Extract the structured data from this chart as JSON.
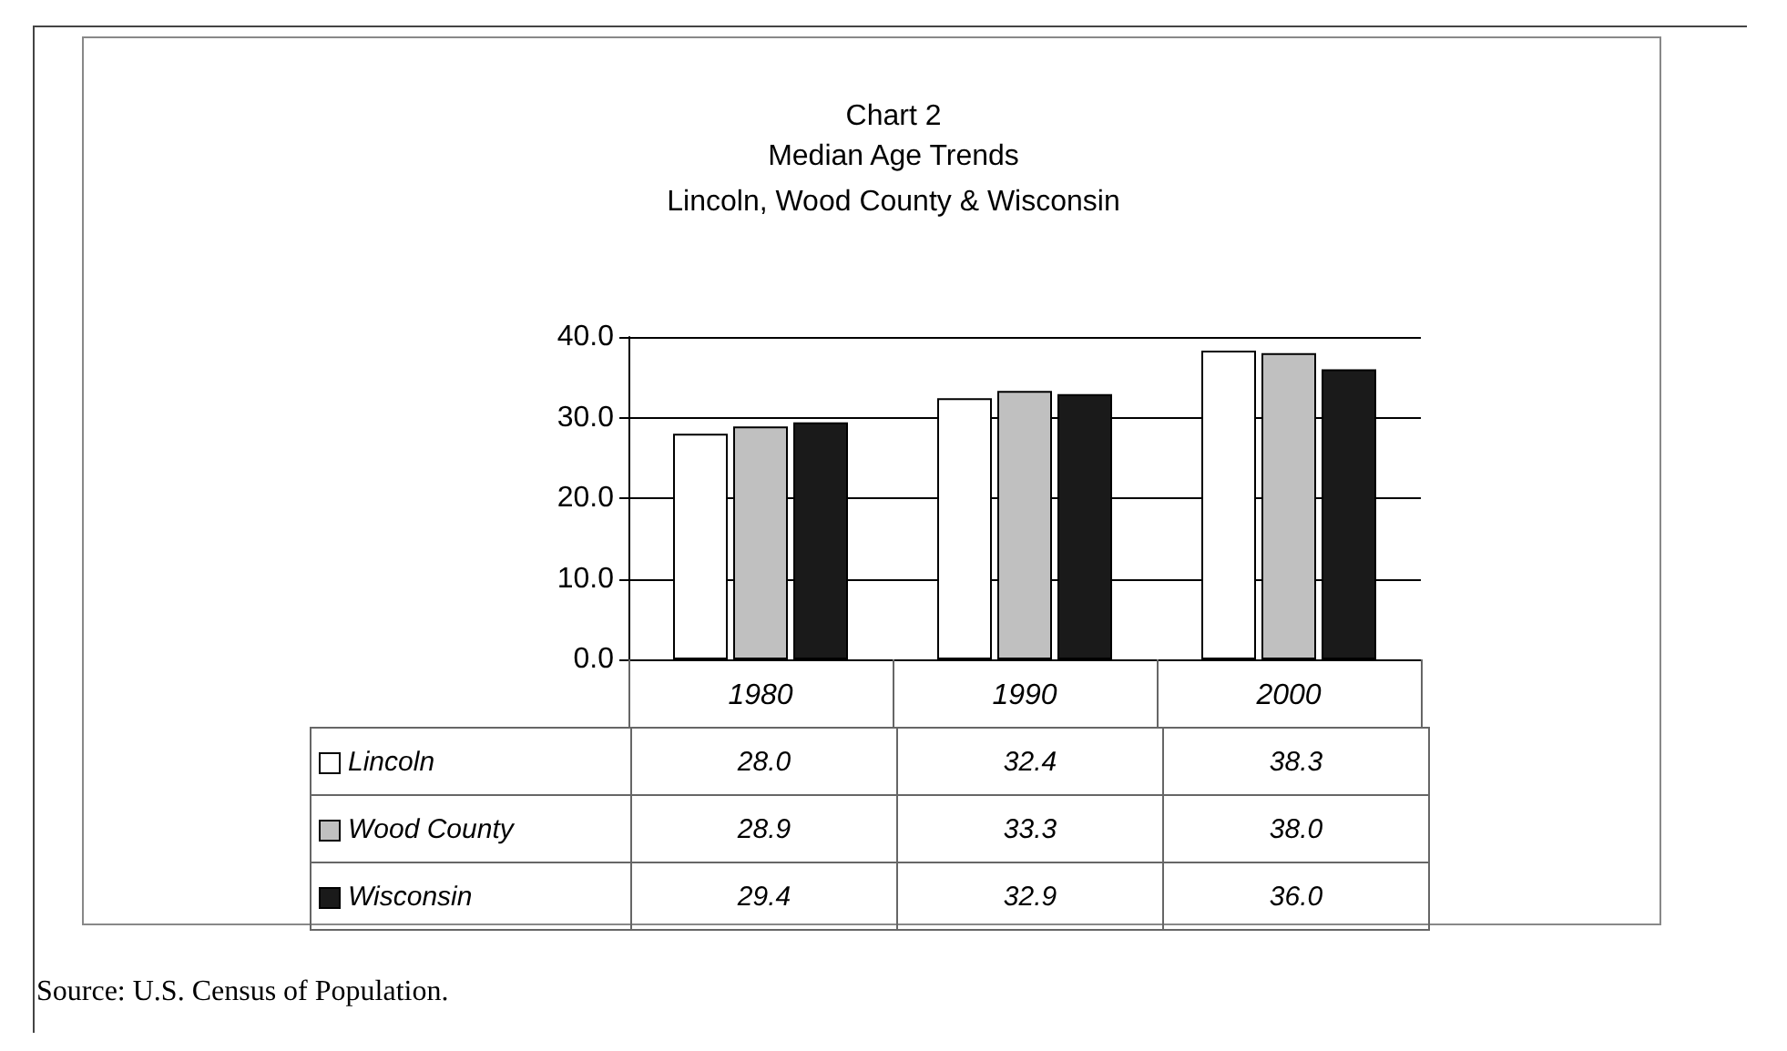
{
  "chart_data": {
    "type": "bar",
    "title": "Chart 2\nMedian Age Trends",
    "subtitle": "Lincoln, Wood County & Wisconsin",
    "categories": [
      "1980",
      "1990",
      "2000"
    ],
    "series": [
      {
        "name": "Lincoln",
        "color": "#ffffff",
        "values": [
          28.0,
          32.4,
          38.3
        ],
        "value_labels": [
          "28.0",
          "32.4",
          "38.3"
        ]
      },
      {
        "name": "Wood County",
        "color": "#c0c0c0",
        "values": [
          28.9,
          33.3,
          38.0
        ],
        "value_labels": [
          "28.9",
          "33.3",
          "38.0"
        ]
      },
      {
        "name": "Wisconsin",
        "color": "#1a1a1a",
        "values": [
          29.4,
          32.9,
          36.0
        ],
        "value_labels": [
          "29.4",
          "32.9",
          "36.0"
        ]
      }
    ],
    "ylim": [
      0,
      40
    ],
    "yticks": [
      {
        "value": 0,
        "label": "0.0"
      },
      {
        "value": 10,
        "label": "10.0"
      },
      {
        "value": 20,
        "label": "20.0"
      },
      {
        "value": 30,
        "label": "30.0"
      },
      {
        "value": 40,
        "label": "40.0"
      }
    ],
    "grid": "y",
    "legend": "bottom",
    "annotations": [
      "Source: U.S. Census of Population."
    ]
  }
}
